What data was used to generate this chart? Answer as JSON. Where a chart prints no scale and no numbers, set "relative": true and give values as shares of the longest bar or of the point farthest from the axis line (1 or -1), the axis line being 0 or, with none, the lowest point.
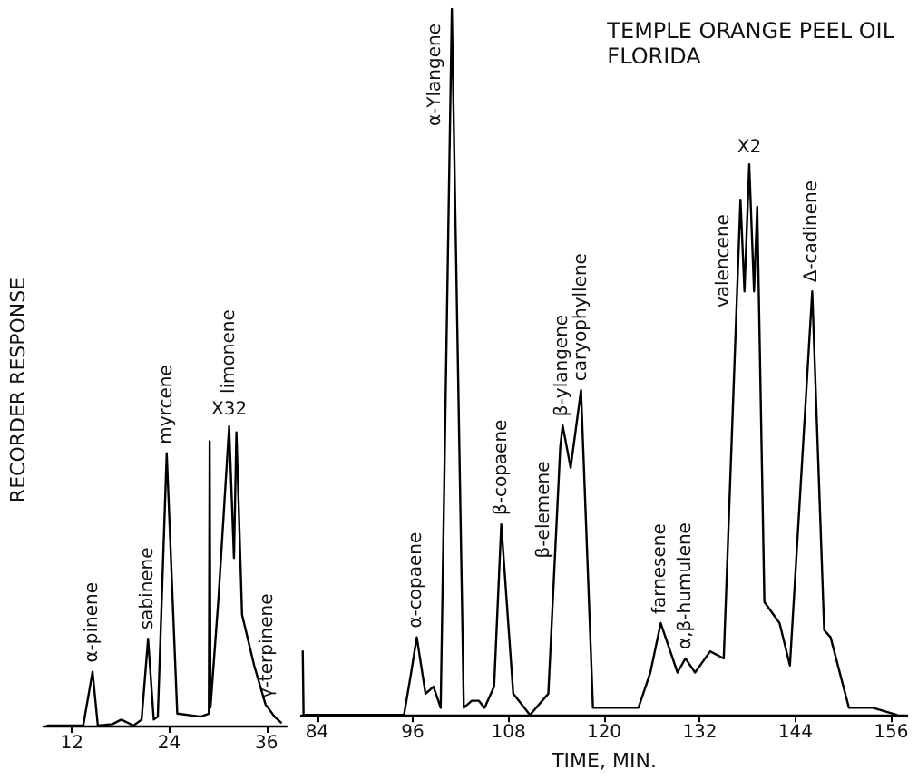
{
  "chart_data": [
    {
      "type": "line",
      "relative": true,
      "ylabel": "RECORDER RESPONSE",
      "xlim": [
        8.5,
        38.5
      ],
      "xticks": [
        12,
        24,
        36
      ],
      "x": [
        9.0,
        13.4,
        14.55,
        15.2,
        17.0,
        18.1,
        19.6,
        20.6,
        21.4,
        22.1,
        22.6,
        23.7,
        25.0,
        27.9,
        28.9,
        29.0,
        29.1,
        30.1,
        31.4,
        32.0,
        32.3,
        33.0,
        34.5,
        35.9,
        36.2,
        37.0,
        37.8
      ],
      "series": [
        {
          "color": "#000000",
          "values": [
            0,
            0,
            0.18,
            0,
            0.005,
            0.02,
            0,
            0.02,
            0.29,
            0.02,
            0.03,
            0.91,
            0.04,
            0.03,
            0.04,
            0.95,
            0.06,
            0.43,
            1.0,
            0.56,
            0.98,
            0.37,
            0.2,
            0.07,
            0.06,
            0.03,
            0.01
          ]
        }
      ],
      "annotations": [
        {
          "text": "α-pinene",
          "x": 14.55,
          "y": 0.18
        },
        {
          "text": "sabinene",
          "x": 21.4,
          "y": 0.29
        },
        {
          "text": "myrcene",
          "x": 23.7,
          "y": 0.91
        },
        {
          "text": "limonene",
          "x": 31.4,
          "y": 1.0
        },
        {
          "text": "X32",
          "x": 31.4,
          "y": 1.0
        },
        {
          "text": "γ-terpinene",
          "x": 36.2,
          "y": 0.06
        }
      ]
    },
    {
      "type": "line",
      "relative": true,
      "title": "TEMPLE ORANGE PEEL OIL",
      "subtitle": "FLORIDA",
      "xlabel": "TIME, MIN.",
      "xlim": [
        82,
        158
      ],
      "xticks": [
        84,
        96,
        108,
        120,
        132,
        144,
        156
      ],
      "x": [
        82.2,
        82.3,
        94.9,
        95.8,
        96.5,
        97.6,
        98.6,
        99.5,
        100.9,
        102.4,
        103.4,
        104.3,
        105.0,
        106.2,
        107.1,
        108.6,
        110.7,
        113.0,
        114.5,
        114.8,
        115.8,
        117.1,
        118.6,
        121,
        124.3,
        125.8,
        127.1,
        129.2,
        130.2,
        131.4,
        133.3,
        135.0,
        137.1,
        137.6,
        138.2,
        138.8,
        139.2,
        140.1,
        142.0,
        143.3,
        146.1,
        147.6,
        148.4,
        150.7,
        153.7,
        156.7
      ],
      "series": [
        {
          "color": "#000000",
          "values": [
            0.09,
            0,
            0,
            0.06,
            0.11,
            0.03,
            0.04,
            0.01,
            1.0,
            0.01,
            0.02,
            0.02,
            0.01,
            0.04,
            0.27,
            0.03,
            0,
            0.03,
            0.38,
            0.41,
            0.35,
            0.46,
            0.01,
            0.01,
            0.01,
            0.06,
            0.13,
            0.06,
            0.08,
            0.06,
            0.09,
            0.08,
            0.73,
            0.6,
            0.78,
            0.6,
            0.72,
            0.16,
            0.13,
            0.07,
            0.6,
            0.12,
            0.11,
            0.01,
            0.01,
            0
          ]
        }
      ],
      "annotations": [
        {
          "text": "α-copaene",
          "x": 96.5,
          "y": 0.11
        },
        {
          "text": "α-Ylangene",
          "x": 100.9,
          "y": 1.0
        },
        {
          "text": "β-copaene",
          "x": 107.1,
          "y": 0.27
        },
        {
          "text": "β-elemene",
          "x": 114.5,
          "y": 0.38
        },
        {
          "text": "β-ylangene",
          "x": 114.8,
          "y": 0.41
        },
        {
          "text": "caryophyllene",
          "x": 117.1,
          "y": 0.46
        },
        {
          "text": "farnesene",
          "x": 127.1,
          "y": 0.13
        },
        {
          "text": "α,β-humulene",
          "x": 130.2,
          "y": 0.08
        },
        {
          "text": "valencene",
          "x": 137.1,
          "y": 0.73
        },
        {
          "text": "X2",
          "x": 138.2,
          "y": 0.78
        },
        {
          "text": "Δ-cadinene",
          "x": 146.1,
          "y": 0.6
        }
      ]
    }
  ]
}
